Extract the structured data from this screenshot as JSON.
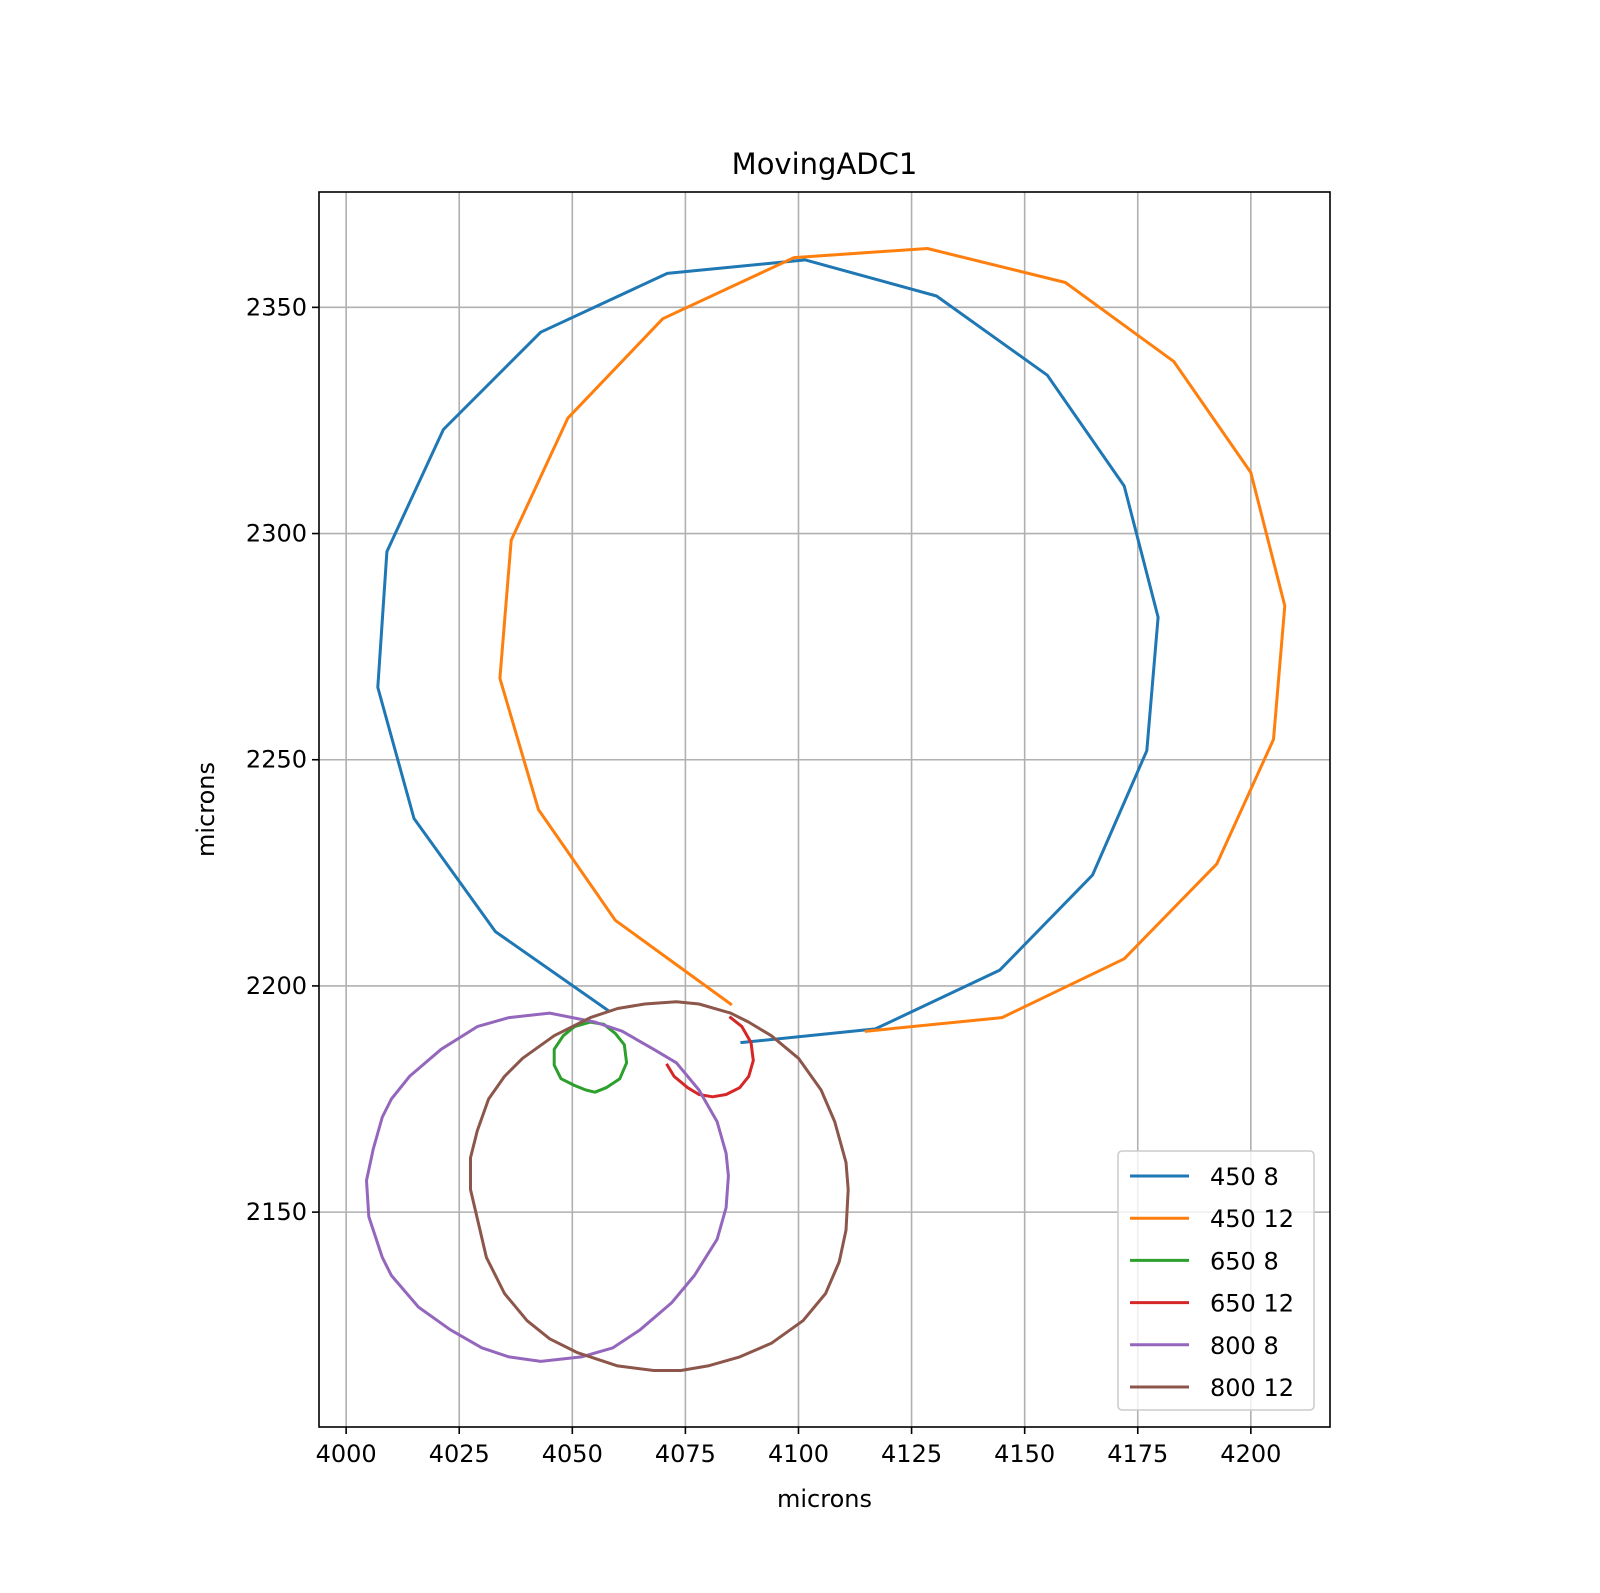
{
  "chart_data": {
    "type": "line",
    "title": "MovingADC1",
    "xlabel": "microns",
    "ylabel": "microns",
    "xlim": [
      3994,
      4217.5
    ],
    "ylim": [
      2102.5,
      2375.5
    ],
    "xticks": [
      4000,
      4025,
      4050,
      4075,
      4100,
      4125,
      4150,
      4175,
      4200
    ],
    "yticks": [
      2150,
      2200,
      2250,
      2300,
      2350
    ],
    "grid": true,
    "legend_position": "lower right",
    "series": [
      {
        "name": "450 8",
        "color": "#1f77b4",
        "points": [
          [
            4058,
            2194.5
          ],
          [
            4033,
            2212
          ],
          [
            4015,
            2237
          ],
          [
            4007,
            2266
          ],
          [
            4009,
            2296
          ],
          [
            4021.5,
            2323
          ],
          [
            4043,
            2344.5
          ],
          [
            4071,
            2357.5
          ],
          [
            4101.5,
            2360.5
          ],
          [
            4130.5,
            2352.5
          ],
          [
            4155,
            2335
          ],
          [
            4172,
            2310.5
          ],
          [
            4179.5,
            2281.5
          ],
          [
            4177,
            2252
          ],
          [
            4165,
            2224.5
          ],
          [
            4144.5,
            2203.5
          ],
          [
            4117,
            2190.5
          ],
          [
            4087.5,
            2187.5
          ]
        ]
      },
      {
        "name": "450 12",
        "color": "#ff7f0e",
        "points": [
          [
            4085,
            2196
          ],
          [
            4059.5,
            2214.5
          ],
          [
            4042.5,
            2239
          ],
          [
            4034,
            2268
          ],
          [
            4036.5,
            2298.5
          ],
          [
            4049,
            2325.5
          ],
          [
            4070,
            2347.5
          ],
          [
            4099,
            2361
          ],
          [
            4128.5,
            2363
          ],
          [
            4159,
            2355.5
          ],
          [
            4183,
            2338
          ],
          [
            4200,
            2313.5
          ],
          [
            4207.5,
            2284
          ],
          [
            4205,
            2254.5
          ],
          [
            4192.5,
            2227
          ],
          [
            4172,
            2206
          ],
          [
            4145,
            2193
          ],
          [
            4115,
            2190
          ]
        ]
      },
      {
        "name": "650 8",
        "color": "#2ca02c",
        "points": [
          [
            4054,
            2192
          ],
          [
            4050.5,
            2191
          ],
          [
            4048,
            2189
          ],
          [
            4046,
            2186
          ],
          [
            4046,
            2182.5
          ],
          [
            4047.5,
            2179.5
          ],
          [
            4050.5,
            2178
          ],
          [
            4053,
            2177
          ],
          [
            4055,
            2176.5
          ],
          [
            4057.5,
            2177.5
          ],
          [
            4060.5,
            2179.5
          ],
          [
            4062,
            2183
          ],
          [
            4061.5,
            2187
          ],
          [
            4059.5,
            2189.5
          ],
          [
            4057,
            2191.5
          ],
          [
            4054,
            2192
          ]
        ]
      },
      {
        "name": "650 12",
        "color": "#d62728",
        "points": [
          [
            4071,
            2182.5
          ],
          [
            4072.5,
            2180
          ],
          [
            4075.5,
            2177.5
          ],
          [
            4078,
            2176
          ],
          [
            4081,
            2175.5
          ],
          [
            4084,
            2176
          ],
          [
            4087,
            2177.5
          ],
          [
            4089,
            2180
          ],
          [
            4090,
            2183.5
          ],
          [
            4089.5,
            2187.5
          ],
          [
            4087.5,
            2191
          ],
          [
            4085,
            2193
          ]
        ]
      },
      {
        "name": "800 8",
        "color": "#9467bd",
        "points": [
          [
            4055,
            2192
          ],
          [
            4045,
            2194
          ],
          [
            4036,
            2193
          ],
          [
            4029,
            2191
          ],
          [
            4021,
            2186
          ],
          [
            4014,
            2180
          ],
          [
            4010,
            2175
          ],
          [
            4008,
            2171
          ],
          [
            4006,
            2164
          ],
          [
            4004.5,
            2157
          ],
          [
            4005,
            2149
          ],
          [
            4008,
            2140
          ],
          [
            4010,
            2136
          ],
          [
            4016,
            2129
          ],
          [
            4023,
            2124
          ],
          [
            4030,
            2120
          ],
          [
            4036,
            2118
          ],
          [
            4043,
            2117
          ],
          [
            4052,
            2118
          ],
          [
            4059,
            2120
          ],
          [
            4065,
            2124
          ],
          [
            4072,
            2130
          ],
          [
            4077,
            2136
          ],
          [
            4082,
            2144
          ],
          [
            4084,
            2151
          ],
          [
            4084.5,
            2158
          ],
          [
            4084,
            2163
          ],
          [
            4082,
            2170
          ],
          [
            4078,
            2177
          ],
          [
            4073,
            2183
          ],
          [
            4068,
            2186
          ],
          [
            4061,
            2190
          ],
          [
            4055,
            2192
          ]
        ]
      },
      {
        "name": "800 12",
        "color": "#8c564b",
        "points": [
          [
            4085,
            2194
          ],
          [
            4078,
            2196
          ],
          [
            4073,
            2196.5
          ],
          [
            4066,
            2196
          ],
          [
            4060,
            2195
          ],
          [
            4054,
            2193
          ],
          [
            4046,
            2189
          ],
          [
            4039,
            2184
          ],
          [
            4035,
            2180
          ],
          [
            4031.5,
            2175
          ],
          [
            4029,
            2168
          ],
          [
            4027.5,
            2162
          ],
          [
            4027.5,
            2155
          ],
          [
            4031,
            2140
          ],
          [
            4035,
            2132
          ],
          [
            4040,
            2126
          ],
          [
            4045,
            2122
          ],
          [
            4051,
            2119
          ],
          [
            4060,
            2116
          ],
          [
            4068,
            2115
          ],
          [
            4074,
            2115
          ],
          [
            4080,
            2116
          ],
          [
            4087,
            2118
          ],
          [
            4094,
            2121
          ],
          [
            4101,
            2126
          ],
          [
            4106,
            2132
          ],
          [
            4109,
            2139
          ],
          [
            4110.5,
            2146
          ],
          [
            4111,
            2155
          ],
          [
            4110.5,
            2161
          ],
          [
            4108,
            2170
          ],
          [
            4105,
            2177
          ],
          [
            4100,
            2184
          ],
          [
            4094,
            2189
          ],
          [
            4089,
            2192
          ],
          [
            4085,
            2194
          ]
        ]
      }
    ]
  }
}
